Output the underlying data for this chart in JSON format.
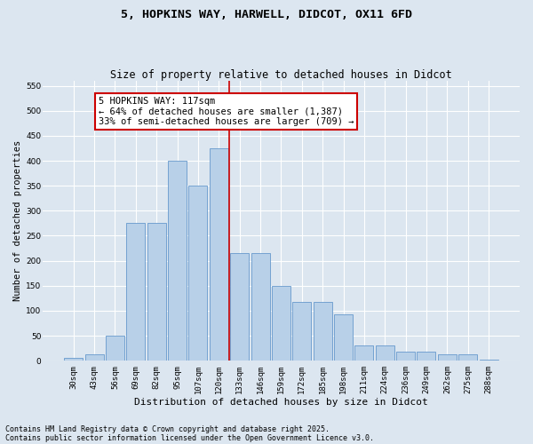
{
  "title": "5, HOPKINS WAY, HARWELL, DIDCOT, OX11 6FD",
  "subtitle": "Size of property relative to detached houses in Didcot",
  "xlabel": "Distribution of detached houses by size in Didcot",
  "ylabel": "Number of detached properties",
  "footnote1": "Contains HM Land Registry data © Crown copyright and database right 2025.",
  "footnote2": "Contains public sector information licensed under the Open Government Licence v3.0.",
  "bar_labels": [
    "30sqm",
    "43sqm",
    "56sqm",
    "69sqm",
    "82sqm",
    "95sqm",
    "107sqm",
    "120sqm",
    "133sqm",
    "146sqm",
    "159sqm",
    "172sqm",
    "185sqm",
    "198sqm",
    "211sqm",
    "224sqm",
    "236sqm",
    "249sqm",
    "262sqm",
    "275sqm",
    "288sqm"
  ],
  "bar_values": [
    5,
    12,
    50,
    275,
    275,
    400,
    350,
    425,
    215,
    215,
    150,
    118,
    118,
    92,
    30,
    30,
    18,
    18,
    12,
    12,
    3
  ],
  "bar_color": "#b8d0e8",
  "bar_edge_color": "#6699cc",
  "vline_x": 7.5,
  "vline_color": "#cc0000",
  "annotation_text": "5 HOPKINS WAY: 117sqm\n← 64% of detached houses are smaller (1,387)\n33% of semi-detached houses are larger (709) →",
  "annotation_box_color": "#ffffff",
  "annotation_box_edge_color": "#cc0000",
  "ylim": [
    0,
    560
  ],
  "yticks": [
    0,
    50,
    100,
    150,
    200,
    250,
    300,
    350,
    400,
    450,
    500,
    550
  ],
  "bg_color": "#dce6f0",
  "plot_bg_color": "#dce6f0",
  "grid_color": "#ffffff",
  "title_fontsize": 9.5,
  "subtitle_fontsize": 8.5,
  "annotation_fontsize": 7.5,
  "tick_fontsize": 6.5,
  "xlabel_fontsize": 8,
  "ylabel_fontsize": 7.5,
  "footnote_fontsize": 6
}
